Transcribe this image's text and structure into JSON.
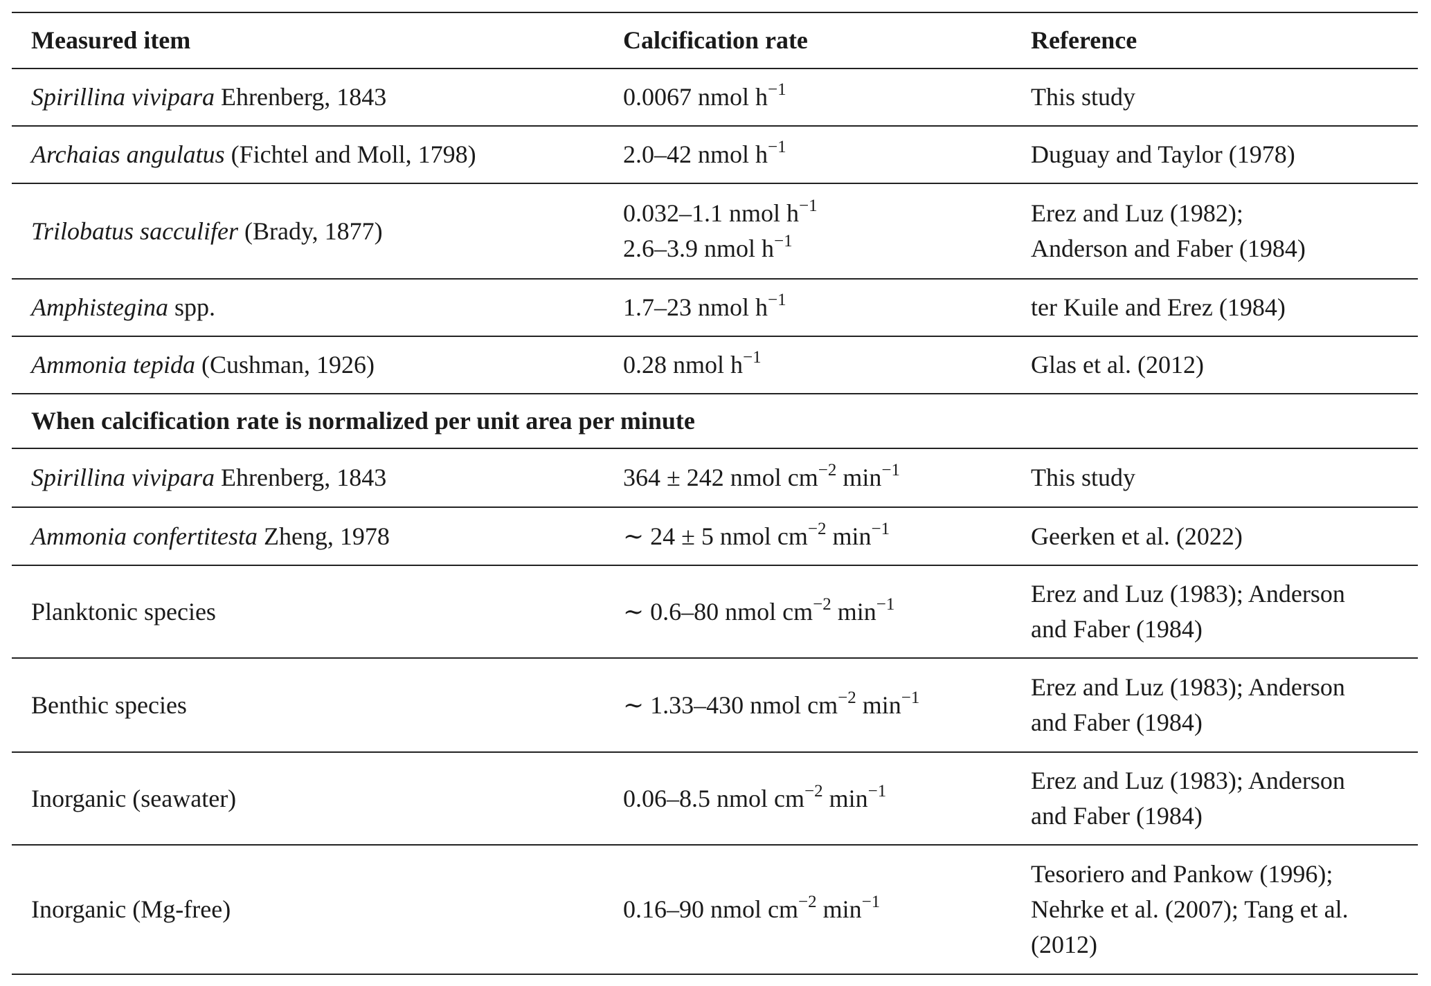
{
  "table": {
    "headers": [
      "Measured item",
      "Calcification rate",
      "Reference"
    ],
    "section_heading": "When calcification rate is normalized per unit area per minute",
    "rows_per_hour": [
      {
        "item": {
          "italic": "Spirillina vivipara",
          "rest": " Ehrenberg, 1843"
        },
        "rate": [
          [
            {
              "t": "0.0067 nmol h"
            },
            {
              "sup": "−1"
            }
          ]
        ],
        "reference": [
          "This study"
        ]
      },
      {
        "item": {
          "italic": "Archaias angulatus",
          "rest": " (Fichtel and Moll, 1798)"
        },
        "rate": [
          [
            {
              "t": "2.0–42 nmol h"
            },
            {
              "sup": "−1"
            }
          ]
        ],
        "reference": [
          "Duguay and Taylor (1978)"
        ]
      },
      {
        "item": {
          "italic": "Trilobatus sacculifer",
          "rest": " (Brady, 1877)"
        },
        "rate": [
          [
            {
              "t": "0.032–1.1 nmol h"
            },
            {
              "sup": "−1"
            }
          ],
          [
            {
              "t": "2.6–3.9 nmol h"
            },
            {
              "sup": "−1"
            }
          ]
        ],
        "reference": [
          "Erez and Luz (1982);",
          "Anderson and Faber (1984)"
        ]
      },
      {
        "item": {
          "italic": "Amphistegina",
          "rest": " spp."
        },
        "rate": [
          [
            {
              "t": "1.7–23 nmol h"
            },
            {
              "sup": "−1"
            }
          ]
        ],
        "reference": [
          "ter Kuile and Erez (1984)"
        ]
      },
      {
        "item": {
          "italic": "Ammonia tepida",
          "rest": " (Cushman, 1926)"
        },
        "rate": [
          [
            {
              "t": "0.28 nmol h"
            },
            {
              "sup": "−1"
            }
          ]
        ],
        "reference": [
          "Glas et al. (2012)"
        ]
      }
    ],
    "rows_per_area": [
      {
        "item": {
          "italic": "Spirillina vivipara",
          "rest": " Ehrenberg, 1843"
        },
        "rate": [
          [
            {
              "t": "364 ± 242 nmol cm"
            },
            {
              "sup": "−2"
            },
            {
              "t": " min"
            },
            {
              "sup": "−1"
            }
          ]
        ],
        "reference": [
          "This study"
        ]
      },
      {
        "item": {
          "italic": "Ammonia confertitesta",
          "rest": " Zheng, 1978"
        },
        "rate": [
          [
            {
              "t": "∼ 24 ± 5 nmol cm"
            },
            {
              "sup": "−2"
            },
            {
              "t": " min"
            },
            {
              "sup": "−1"
            }
          ]
        ],
        "reference": [
          "Geerken et al. (2022)"
        ]
      },
      {
        "item": {
          "italic": "",
          "rest": "Planktonic species"
        },
        "rate": [
          [
            {
              "t": "∼ 0.6–80 nmol cm"
            },
            {
              "sup": "−2"
            },
            {
              "t": " min"
            },
            {
              "sup": "−1"
            }
          ]
        ],
        "reference": [
          "Erez and Luz (1983); Anderson",
          "and Faber (1984)"
        ]
      },
      {
        "item": {
          "italic": "",
          "rest": "Benthic species"
        },
        "rate": [
          [
            {
              "t": "∼ 1.33–430 nmol cm"
            },
            {
              "sup": "−2"
            },
            {
              "t": " min"
            },
            {
              "sup": "−1"
            }
          ]
        ],
        "reference": [
          "Erez and Luz (1983); Anderson",
          "and Faber (1984)"
        ]
      },
      {
        "item": {
          "italic": "",
          "rest": "Inorganic (seawater)"
        },
        "rate": [
          [
            {
              "t": "0.06–8.5 nmol cm"
            },
            {
              "sup": "−2"
            },
            {
              "t": " min"
            },
            {
              "sup": "−1"
            }
          ]
        ],
        "reference": [
          "Erez and Luz (1983); Anderson",
          "and Faber (1984)"
        ]
      },
      {
        "item": {
          "italic": "",
          "rest": "Inorganic (Mg-free)"
        },
        "rate": [
          [
            {
              "t": "0.16–90 nmol cm"
            },
            {
              "sup": "−2"
            },
            {
              "t": " min"
            },
            {
              "sup": "−1"
            }
          ]
        ],
        "reference": [
          "Tesoriero and Pankow (1996);",
          "Nehrke et al. (2007); Tang et al.",
          "(2012)"
        ]
      }
    ]
  }
}
